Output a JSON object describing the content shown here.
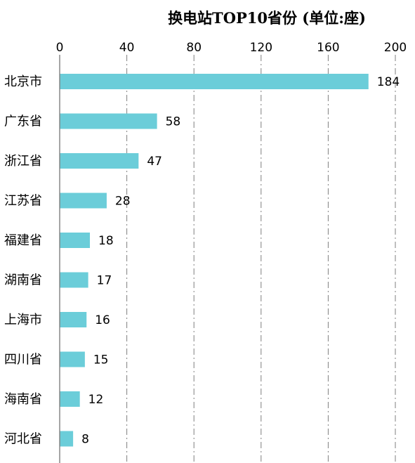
{
  "chart_data": {
    "type": "bar",
    "orientation": "horizontal",
    "title": "换电站TOP10省份 (单位:座)",
    "categories": [
      "北京市",
      "广东省",
      "浙江省",
      "江苏省",
      "福建省",
      "湖南省",
      "上海市",
      "四川省",
      "海南省",
      "河北省"
    ],
    "values": [
      184,
      58,
      47,
      28,
      18,
      17,
      16,
      15,
      12,
      8
    ],
    "xlim": [
      0,
      200
    ],
    "xticks": [
      0,
      40,
      80,
      120,
      160,
      200
    ],
    "x_axis_position": "top",
    "grid": true,
    "grid_style": "dash-dot vertical",
    "legend": "none",
    "bar_color": "#6BCDD9"
  }
}
